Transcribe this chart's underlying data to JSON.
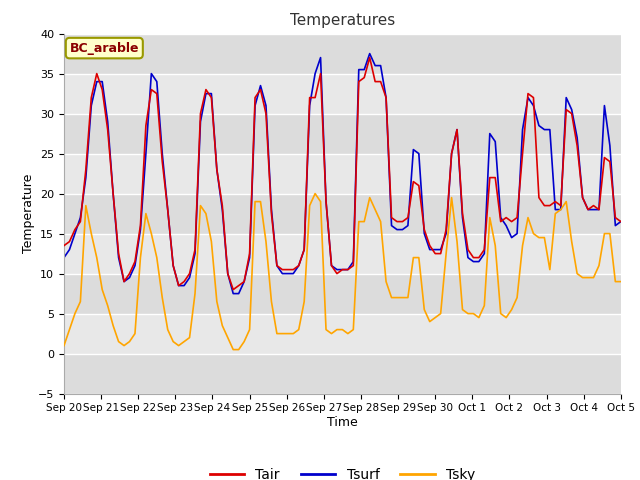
{
  "title": "Temperatures",
  "xlabel": "Time",
  "ylabel": "Temperature",
  "ylim": [
    -5,
    40
  ],
  "fig_bg_color": "#ffffff",
  "plot_bg_color": "#e8e8e8",
  "grid_color": "#ffffff",
  "band_colors": [
    "#dcdcdc",
    "#e8e8e8"
  ],
  "label_box_text": "BC_arable",
  "label_box_color": "#ffffcc",
  "label_box_edge_color": "#999900",
  "label_box_text_color": "#8B0000",
  "line_tair_color": "#dd0000",
  "line_tsurf_color": "#0000cc",
  "line_tsky_color": "#ffa500",
  "legend_labels": [
    "Tair",
    "Tsurf",
    "Tsky"
  ],
  "x_tick_labels": [
    "Sep 20",
    "Sep 21",
    "Sep 22",
    "Sep 23",
    "Sep 24",
    "Sep 25",
    "Sep 26",
    "Sep 27",
    "Sep 28",
    "Sep 29",
    "Sep 30",
    "Oct 1",
    "Oct 2",
    "Oct 3",
    "Oct 4",
    "Oct 5"
  ],
  "tair": [
    13.5,
    14.0,
    15.5,
    16.5,
    23.0,
    32.0,
    35.0,
    33.0,
    28.0,
    20.0,
    12.5,
    9.0,
    10.0,
    11.5,
    16.0,
    28.5,
    33.0,
    32.5,
    24.0,
    18.0,
    11.0,
    8.5,
    9.0,
    10.0,
    13.0,
    30.0,
    33.0,
    32.0,
    23.0,
    18.5,
    10.0,
    8.0,
    8.5,
    9.0,
    12.5,
    32.0,
    33.0,
    30.0,
    17.5,
    11.0,
    10.5,
    10.5,
    10.5,
    11.0,
    13.0,
    32.0,
    32.0,
    35.0,
    19.0,
    11.0,
    10.0,
    10.5,
    10.5,
    11.0,
    34.0,
    34.5,
    37.0,
    34.0,
    34.0,
    32.0,
    17.0,
    16.5,
    16.5,
    17.0,
    21.5,
    21.0,
    15.5,
    13.5,
    12.5,
    12.5,
    15.5,
    25.0,
    28.0,
    17.5,
    13.0,
    12.0,
    12.0,
    13.0,
    22.0,
    22.0,
    16.5,
    17.0,
    16.5,
    17.0,
    25.0,
    32.5,
    32.0,
    19.5,
    18.5,
    18.5,
    19.0,
    18.5,
    30.5,
    30.0,
    26.0,
    19.5,
    18.0,
    18.5,
    18.0,
    24.5,
    24.0,
    17.0,
    16.5
  ],
  "tsurf": [
    12.0,
    13.0,
    15.0,
    17.0,
    22.0,
    31.0,
    34.0,
    34.0,
    29.0,
    20.0,
    12.0,
    9.0,
    9.5,
    11.0,
    15.5,
    25.0,
    35.0,
    34.0,
    25.0,
    18.0,
    11.0,
    8.5,
    8.5,
    9.5,
    12.5,
    29.0,
    32.5,
    32.5,
    23.0,
    18.0,
    10.0,
    7.5,
    7.5,
    9.0,
    12.0,
    31.0,
    33.5,
    31.0,
    18.0,
    11.0,
    10.0,
    10.0,
    10.0,
    11.0,
    13.0,
    31.0,
    35.0,
    37.0,
    19.0,
    11.0,
    10.5,
    10.5,
    10.5,
    11.5,
    35.5,
    35.5,
    37.5,
    36.0,
    36.0,
    32.0,
    16.0,
    15.5,
    15.5,
    16.0,
    25.5,
    25.0,
    15.0,
    13.0,
    13.0,
    13.0,
    15.0,
    25.0,
    28.0,
    17.0,
    12.0,
    11.5,
    11.5,
    12.5,
    27.5,
    26.5,
    17.0,
    16.0,
    14.5,
    15.0,
    28.0,
    32.0,
    31.0,
    28.5,
    28.0,
    28.0,
    18.0,
    18.0,
    32.0,
    30.5,
    27.0,
    19.5,
    18.0,
    18.0,
    18.0,
    31.0,
    26.0,
    16.0,
    16.5
  ],
  "tsky": [
    1.0,
    3.0,
    5.0,
    6.5,
    18.5,
    15.0,
    12.0,
    8.0,
    6.0,
    3.5,
    1.5,
    1.0,
    1.5,
    2.5,
    12.0,
    17.5,
    15.0,
    12.0,
    7.0,
    3.0,
    1.5,
    1.0,
    1.5,
    2.0,
    7.5,
    18.5,
    17.5,
    14.0,
    6.5,
    3.5,
    2.0,
    0.5,
    0.5,
    1.5,
    3.0,
    19.0,
    19.0,
    14.0,
    6.5,
    2.5,
    2.5,
    2.5,
    2.5,
    3.0,
    6.5,
    18.5,
    20.0,
    19.0,
    3.0,
    2.5,
    3.0,
    3.0,
    2.5,
    3.0,
    16.5,
    16.5,
    19.5,
    18.0,
    16.5,
    9.0,
    7.0,
    7.0,
    7.0,
    7.0,
    12.0,
    12.0,
    5.5,
    4.0,
    4.5,
    5.0,
    12.5,
    19.5,
    14.0,
    5.5,
    5.0,
    5.0,
    4.5,
    6.0,
    17.0,
    13.5,
    5.0,
    4.5,
    5.5,
    7.0,
    13.5,
    17.0,
    15.0,
    14.5,
    14.5,
    10.5,
    17.5,
    18.0,
    19.0,
    14.0,
    10.0,
    9.5,
    9.5,
    9.5,
    11.0,
    15.0,
    15.0,
    9.0,
    9.0
  ]
}
